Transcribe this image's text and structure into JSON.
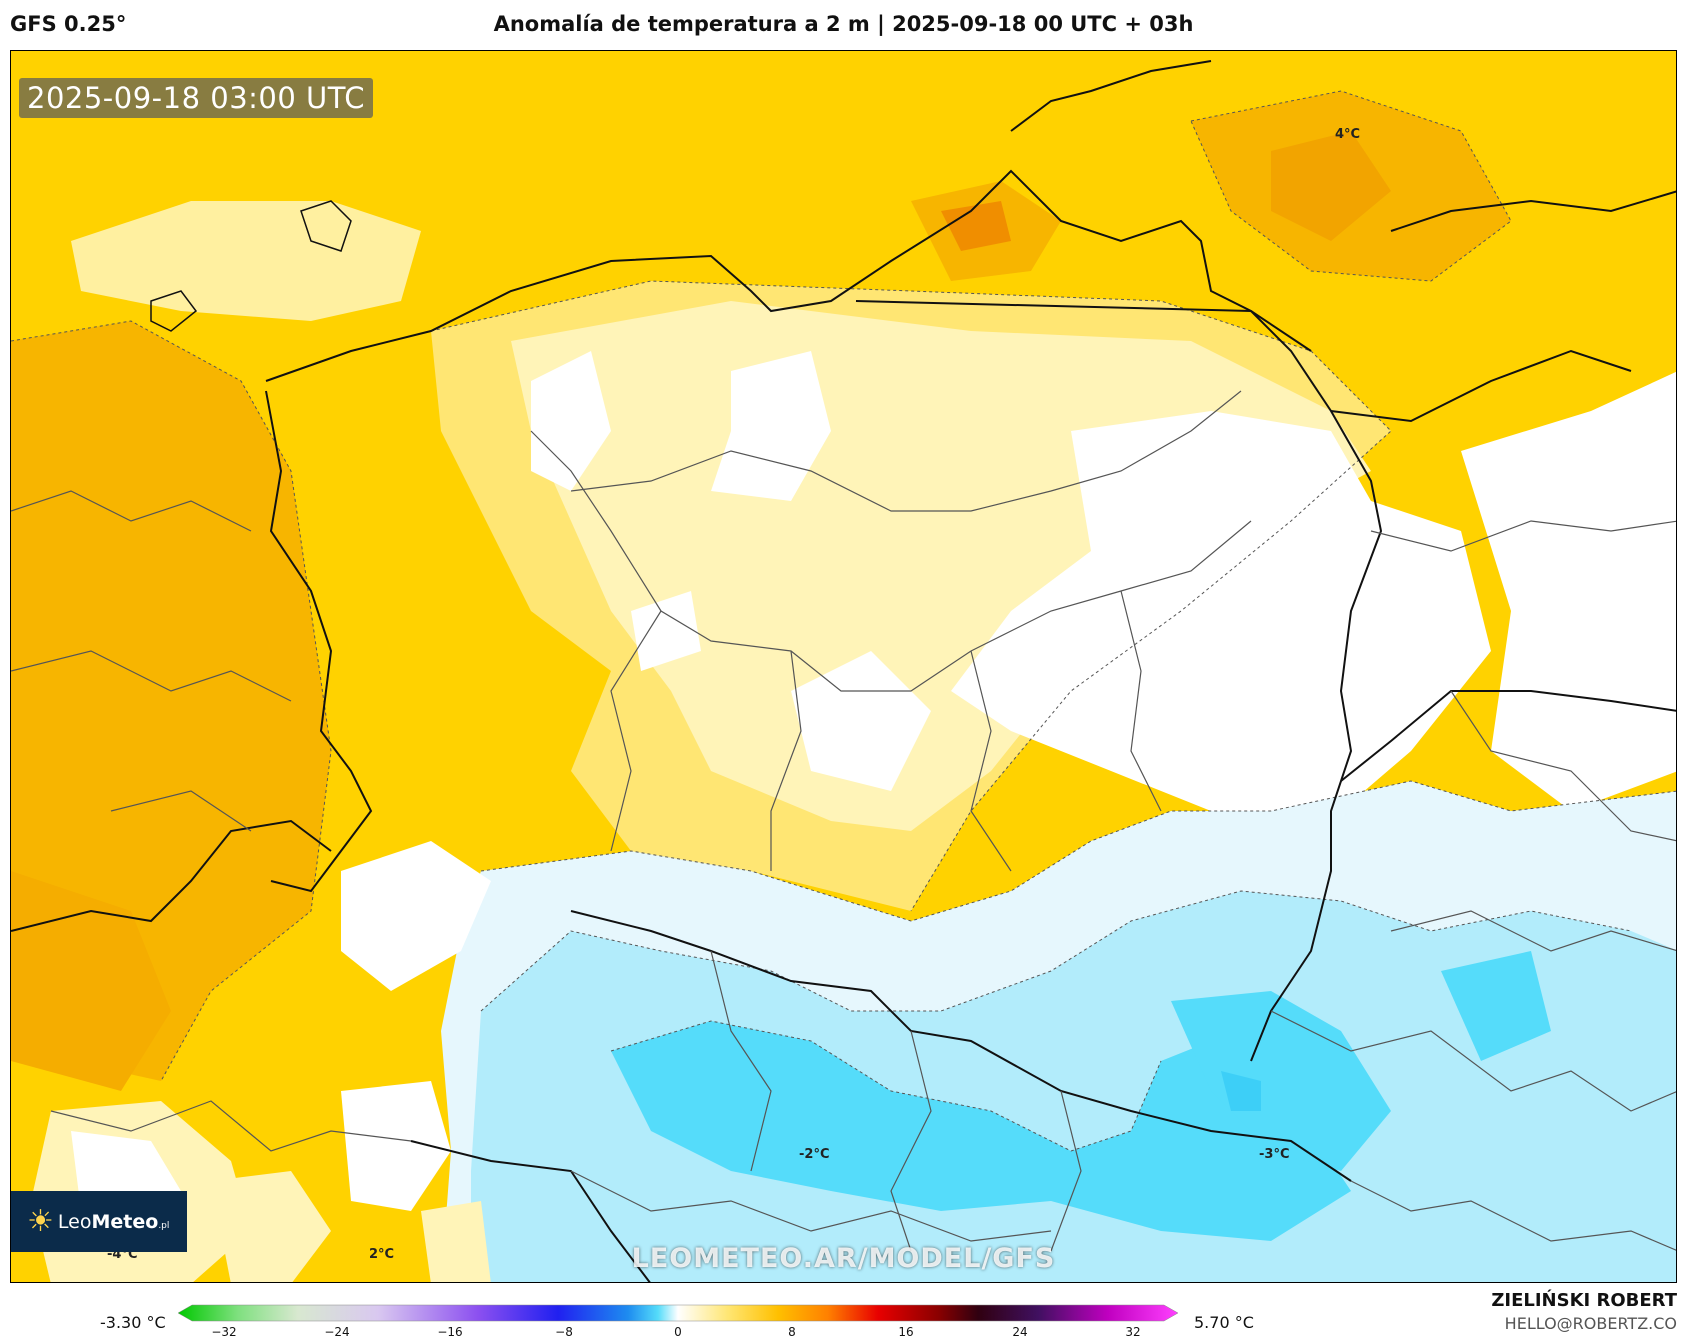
{
  "header": {
    "model": "GFS 0.25°",
    "title": "Anomalía de temperatura a 2 m | 2025-09-18 00 UTC + 03h"
  },
  "map": {
    "valid_time": "2025-09-18 03:00 UTC",
    "watermark": "LEOMETEO.AR/MODEL/GFS",
    "logo": {
      "sun": "☀",
      "text_light": "Leo",
      "text_bold": "Meteo",
      "suffix": ".pl"
    },
    "contour_labels": [
      "4°C",
      "-2°C",
      "-3°C",
      "-4°C",
      "2°C"
    ],
    "fill_colors": {
      "strong_warm": "#f7b500",
      "warm": "#ffd200",
      "mild_warm": "#ffe673",
      "light_warm": "#fff4b8",
      "neutral": "#ffffff",
      "light_cool": "#e6f7fd",
      "cool": "#b2ecfb",
      "strong_cool": "#55dcfa"
    }
  },
  "colorbar": {
    "min_label": "-3.30 °C",
    "max_label": "5.70 °C",
    "ticks": [
      "−32",
      "−24",
      "−16",
      "−8",
      "0",
      "8",
      "16",
      "24",
      "32"
    ]
  },
  "credits": {
    "author": "ZIELIŃSKI ROBERT",
    "email": "HELLO@ROBERTZ.CO"
  }
}
